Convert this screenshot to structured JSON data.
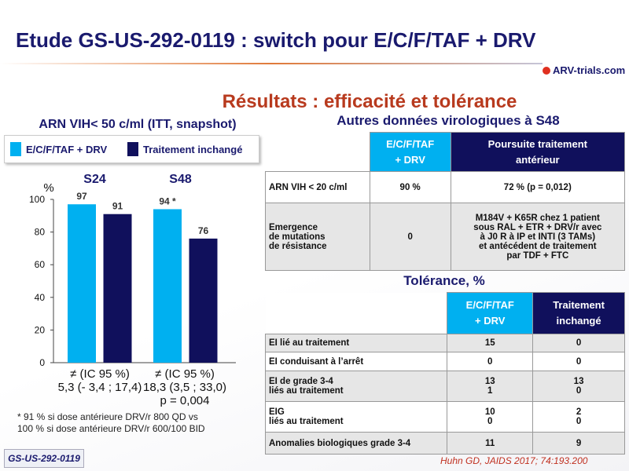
{
  "header": {
    "title": "Etude GS-US-292-0119 : switch pour E/C/F/TAF + DRV",
    "logo": "ARV-trials.com",
    "subtitle": "Résultats : efficacité et tolérance"
  },
  "chart_data": {
    "type": "bar",
    "title": "ARN VIH< 50 c/ml (ITT, snapshot)",
    "y_label": "%",
    "categories": [
      "S24",
      "S48"
    ],
    "series": [
      {
        "name": "E/C/F/TAF + DRV",
        "color": "#00b0f0",
        "values": [
          97,
          94
        ],
        "value_labels": [
          "97",
          "94 *"
        ]
      },
      {
        "name": "Traitement inchangé",
        "color": "#10105c",
        "values": [
          91,
          76
        ]
      }
    ],
    "ylim": [
      0,
      100
    ],
    "yticks": [
      0,
      20,
      40,
      60,
      80,
      100
    ],
    "annotations": [
      "≠ (IC 95 %)\n5,3 (- 3,4 ; 17,4)",
      "≠ (IC 95 %)\n18,3 (3,5 ; 33,0)\np = 0,004"
    ],
    "footnote": "* 91 % si dose antérieure DRV/r 800 QD vs\n100 % si dose antérieure DRV/r 600/100 BID"
  },
  "virology": {
    "title": "Autres données virologiques à S48",
    "columns": [
      "E/C/F/TAF\n+ DRV",
      "Poursuite traitement\nantérieur"
    ],
    "rows": [
      [
        "ARN VIH < 20 c/ml",
        "90 %",
        "72 % (p = 0,012)"
      ],
      [
        "Emergence\nde mutations\nde résistance",
        "0",
        "M184V + K65R chez 1 patient\nsous RAL + ETR + DRV/r avec\nà J0 R à IP et INTI (3 TAMs)\net antécédent de traitement\npar TDF + FTC"
      ]
    ]
  },
  "tolerance": {
    "title": "Tolérance, %",
    "columns": [
      "E/C/F/TAF\n+ DRV",
      "Traitement\ninchangé"
    ],
    "rows": [
      [
        "EI lié au traitement",
        "15",
        "0"
      ],
      [
        "EI conduisant à l’arrêt",
        "0",
        "0"
      ],
      [
        "EI de grade 3-4\n      liés au traitement",
        "13\n1",
        "13\n0"
      ],
      [
        "EIG\n      liés au traitement",
        "10\n0",
        "2\n0"
      ],
      [
        "Anomalies biologiques grade 3-4",
        "11",
        "9"
      ]
    ]
  },
  "footer": {
    "study": "GS-US-292-0119",
    "citation": "Huhn GD, JAIDS 2017; 74:193.200"
  }
}
